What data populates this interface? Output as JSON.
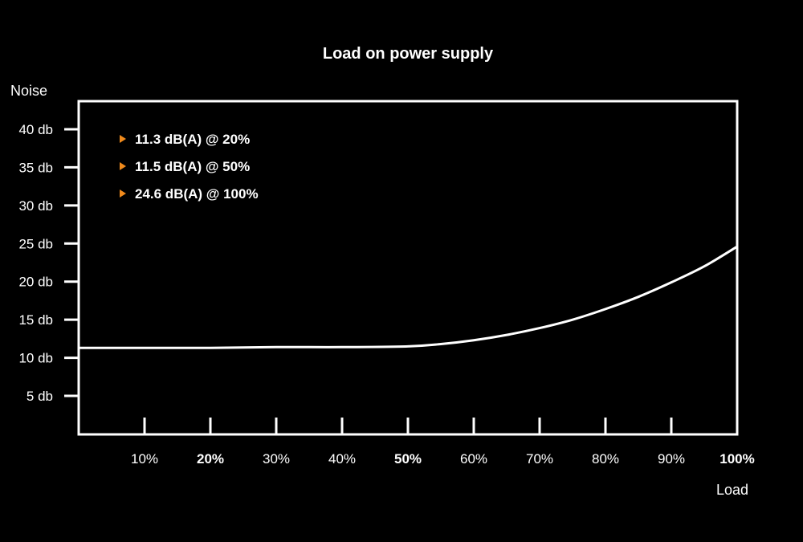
{
  "chart_data": {
    "type": "line",
    "title": "Load on power supply",
    "xlabel": "Load",
    "ylabel": "Noise",
    "xlim": [
      0,
      100
    ],
    "ylim": [
      0,
      45
    ],
    "x_ticks": [
      {
        "value": 10,
        "label": "10%",
        "bold": false
      },
      {
        "value": 20,
        "label": "20%",
        "bold": true
      },
      {
        "value": 30,
        "label": "30%",
        "bold": false
      },
      {
        "value": 40,
        "label": "40%",
        "bold": false
      },
      {
        "value": 50,
        "label": "50%",
        "bold": true
      },
      {
        "value": 60,
        "label": "60%",
        "bold": false
      },
      {
        "value": 70,
        "label": "70%",
        "bold": false
      },
      {
        "value": 80,
        "label": "80%",
        "bold": false
      },
      {
        "value": 90,
        "label": "90%",
        "bold": false
      },
      {
        "value": 100,
        "label": "100%",
        "bold": true
      }
    ],
    "y_ticks": [
      {
        "value": 5,
        "label": "5 db"
      },
      {
        "value": 10,
        "label": "10 db"
      },
      {
        "value": 15,
        "label": "15 db"
      },
      {
        "value": 20,
        "label": "20 db"
      },
      {
        "value": 25,
        "label": "25 db"
      },
      {
        "value": 30,
        "label": "30 db"
      },
      {
        "value": 35,
        "label": "35 db"
      },
      {
        "value": 40,
        "label": "40 db"
      }
    ],
    "series": [
      {
        "x": [
          0,
          10,
          20,
          30,
          40,
          50,
          55,
          60,
          65,
          70,
          75,
          80,
          85,
          90,
          95,
          100
        ],
        "y": [
          11.3,
          11.3,
          11.3,
          11.4,
          11.4,
          11.5,
          11.8,
          12.3,
          13.0,
          13.9,
          15.0,
          16.4,
          18.0,
          19.9,
          22.0,
          24.6
        ]
      }
    ],
    "annotations": [
      "11.3 dB(A) @ 20%",
      "11.5 dB(A) @ 50%",
      "24.6 dB(A) @ 100%"
    ],
    "grid": false,
    "colors": {
      "background": "#000000",
      "line": "#ffffff",
      "marker": "#f08a1c"
    }
  }
}
